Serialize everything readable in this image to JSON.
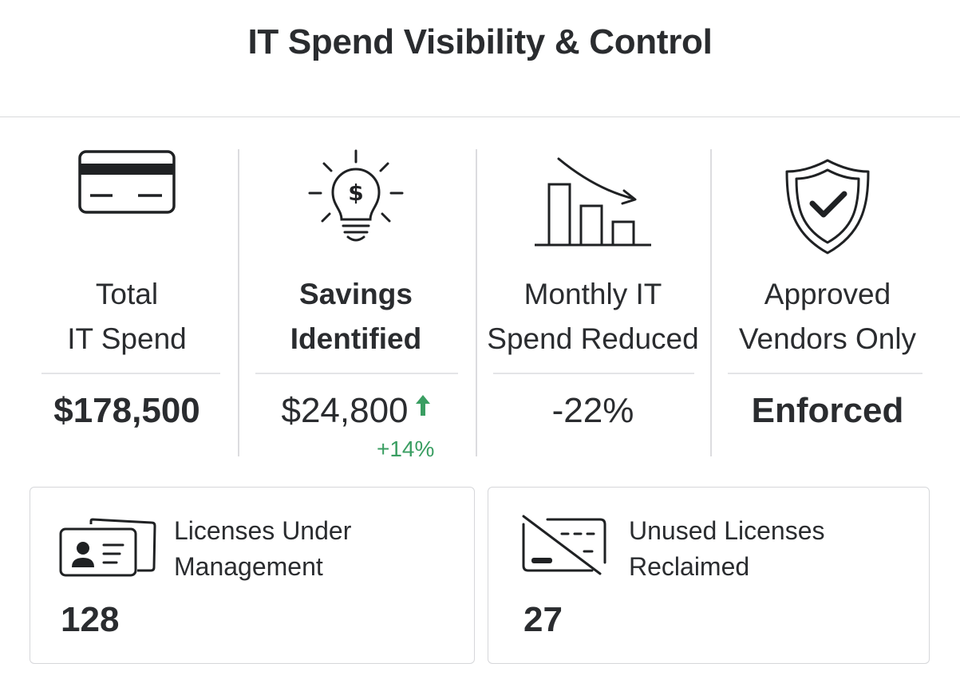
{
  "header": {
    "title": "IT Spend Visibility & Control"
  },
  "metrics": [
    {
      "icon": "credit-card-icon",
      "label_line1": "Total",
      "label_line2": "IT Spend",
      "value": "$178,500"
    },
    {
      "icon": "lightbulb-dollar-icon",
      "label_line1": "Savings",
      "label_line2": "Identified",
      "value": "$24,800",
      "delta": "+14%",
      "trend": "up",
      "trend_color": "#3a9e62"
    },
    {
      "icon": "declining-bar-chart-icon",
      "label_line1": "Monthly IT",
      "label_line2": "Spend Reduced",
      "value": "-22%"
    },
    {
      "icon": "shield-check-icon",
      "label_line1": "Approved",
      "label_line2": "Vendors Only",
      "value": "Enforced"
    }
  ],
  "cards": [
    {
      "icon": "id-cards-icon",
      "title_line1": "Licenses Under",
      "title_line2": "Management",
      "value": "128"
    },
    {
      "icon": "crossed-out-card-icon",
      "title_line1": "Unused Licenses",
      "title_line2": "Reclaimed",
      "value": "27"
    }
  ]
}
